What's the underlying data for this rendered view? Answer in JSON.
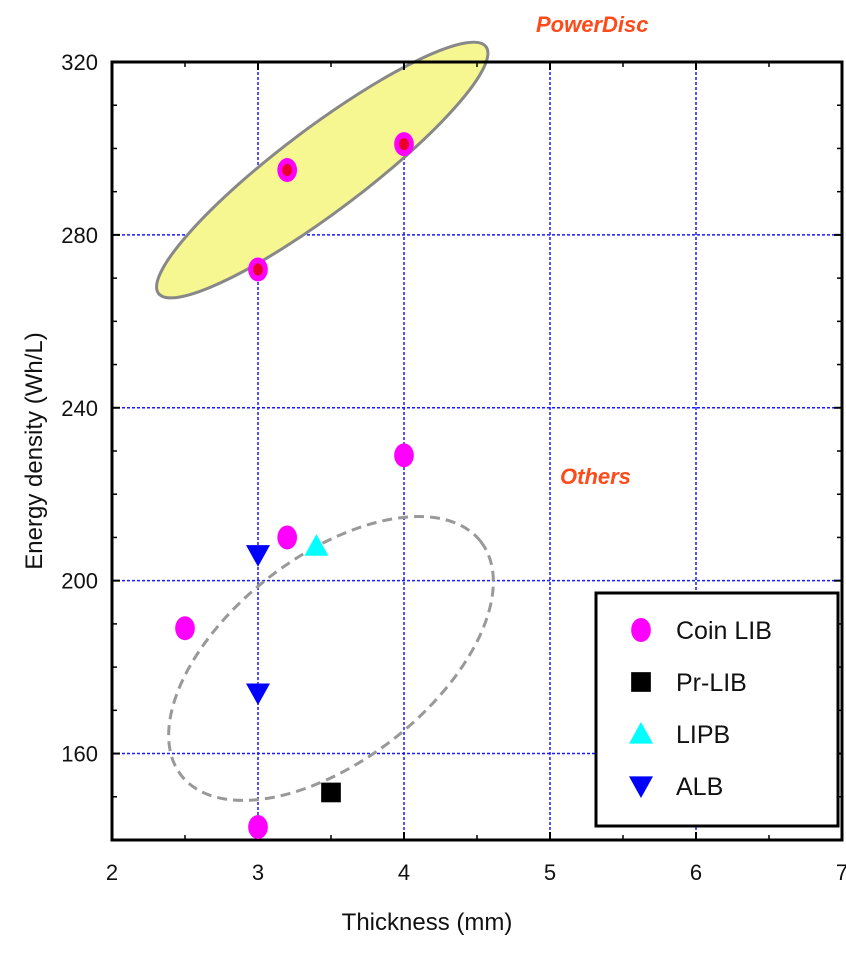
{
  "chart_data": {
    "type": "scatter",
    "xlabel": "Thickness (mm)",
    "ylabel": "Energy density (Wh/L)",
    "xlim": [
      2,
      7
    ],
    "ylim": [
      140,
      320
    ],
    "xticks": [
      2,
      3,
      4,
      5,
      6,
      7
    ],
    "yticks": [
      160,
      200,
      240,
      280,
      320
    ],
    "grid": true,
    "legend_position": "bottom-right",
    "series": [
      {
        "name": "Coin LIB",
        "marker": "circle",
        "color": "#ff00ff",
        "points": [
          [
            3.0,
            272
          ],
          [
            3.2,
            295
          ],
          [
            4.0,
            301
          ],
          [
            4.0,
            229
          ],
          [
            3.2,
            210
          ],
          [
            2.5,
            189
          ],
          [
            3.0,
            143
          ]
        ]
      },
      {
        "name": "Pr-LIB",
        "marker": "square",
        "color": "#000000",
        "points": [
          [
            3.5,
            151
          ]
        ]
      },
      {
        "name": "LIPB",
        "marker": "triangle-up",
        "color": "#00ffff",
        "points": [
          [
            3.4,
            208
          ]
        ]
      },
      {
        "name": "ALB",
        "marker": "triangle-down",
        "color": "#0000ff",
        "points": [
          [
            3.0,
            206
          ],
          [
            3.0,
            174
          ]
        ]
      }
    ],
    "highlighted_points": [
      [
        3.0,
        272
      ],
      [
        3.2,
        295
      ],
      [
        4.0,
        301
      ]
    ],
    "annotations": [
      {
        "text": "PowerDisc",
        "color": "#ff4a1a"
      },
      {
        "text": "Others",
        "color": "#ff4a1a"
      }
    ],
    "regions": [
      {
        "label": "PowerDisc",
        "fill": "#f7f792",
        "stroke": "#888888",
        "style": "solid"
      },
      {
        "label": "Others",
        "fill": "none",
        "stroke": "#999999",
        "style": "dashed"
      }
    ]
  }
}
